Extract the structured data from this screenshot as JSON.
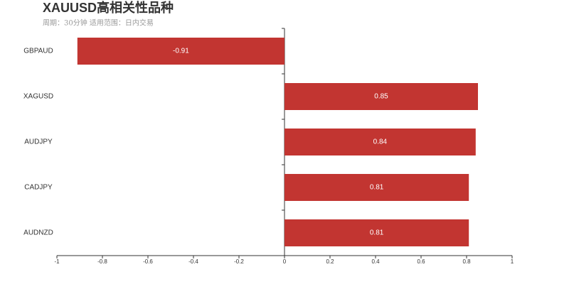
{
  "chart_data": {
    "type": "barh",
    "title": "XAUUSD高相关性品种",
    "subtitle": "周期：30分钟 适用范围：日内交易",
    "categories": [
      "GBPAUD",
      "XAGUSD",
      "AUDJPY",
      "CADJPY",
      "AUDNZD"
    ],
    "values": [
      -0.91,
      0.85,
      0.84,
      0.81,
      0.81
    ],
    "color": "#c23531",
    "xlim": [
      -1,
      1
    ],
    "xticks": [
      -1,
      -0.8,
      -0.6,
      -0.4,
      -0.2,
      0,
      0.2,
      0.4,
      0.6,
      0.8,
      1
    ]
  }
}
